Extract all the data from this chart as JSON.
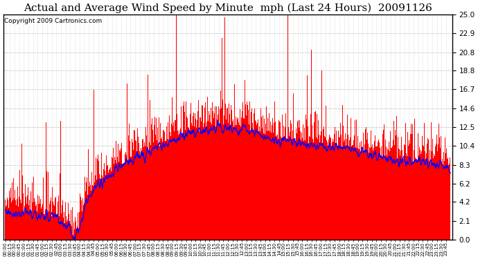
{
  "title": "Actual and Average Wind Speed by Minute  mph (Last 24 Hours)  20091126",
  "copyright": "Copyright 2009 Cartronics.com",
  "yticks": [
    0.0,
    2.1,
    4.2,
    6.2,
    8.3,
    10.4,
    12.5,
    14.6,
    16.7,
    18.8,
    20.8,
    22.9,
    25.0
  ],
  "ymax": 25.0,
  "ymin": 0.0,
  "background_color": "#ffffff",
  "bar_color": "#ff0000",
  "line_color": "#0000ff",
  "grid_color": "#bbbbbb",
  "title_fontsize": 11,
  "copyright_fontsize": 6.5,
  "key_minutes": [
    0,
    30,
    90,
    150,
    210,
    215,
    230,
    270,
    330,
    390,
    450,
    510,
    570,
    630,
    690,
    750,
    810,
    870,
    930,
    990,
    1050,
    1110,
    1170,
    1230,
    1290,
    1350,
    1410,
    1439
  ],
  "key_avg": [
    3.2,
    3.0,
    2.8,
    2.5,
    1.5,
    0.3,
    0.5,
    5.0,
    7.0,
    8.5,
    9.5,
    10.5,
    11.5,
    12.0,
    12.5,
    12.2,
    11.8,
    11.2,
    10.8,
    10.5,
    10.2,
    10.0,
    9.5,
    9.0,
    8.8,
    8.5,
    8.2,
    8.0
  ],
  "noise_scale": 2.0,
  "avg_noise_scale": 0.6,
  "spike_count": 30,
  "spike_min": 4,
  "spike_max": 12,
  "seed": 77
}
